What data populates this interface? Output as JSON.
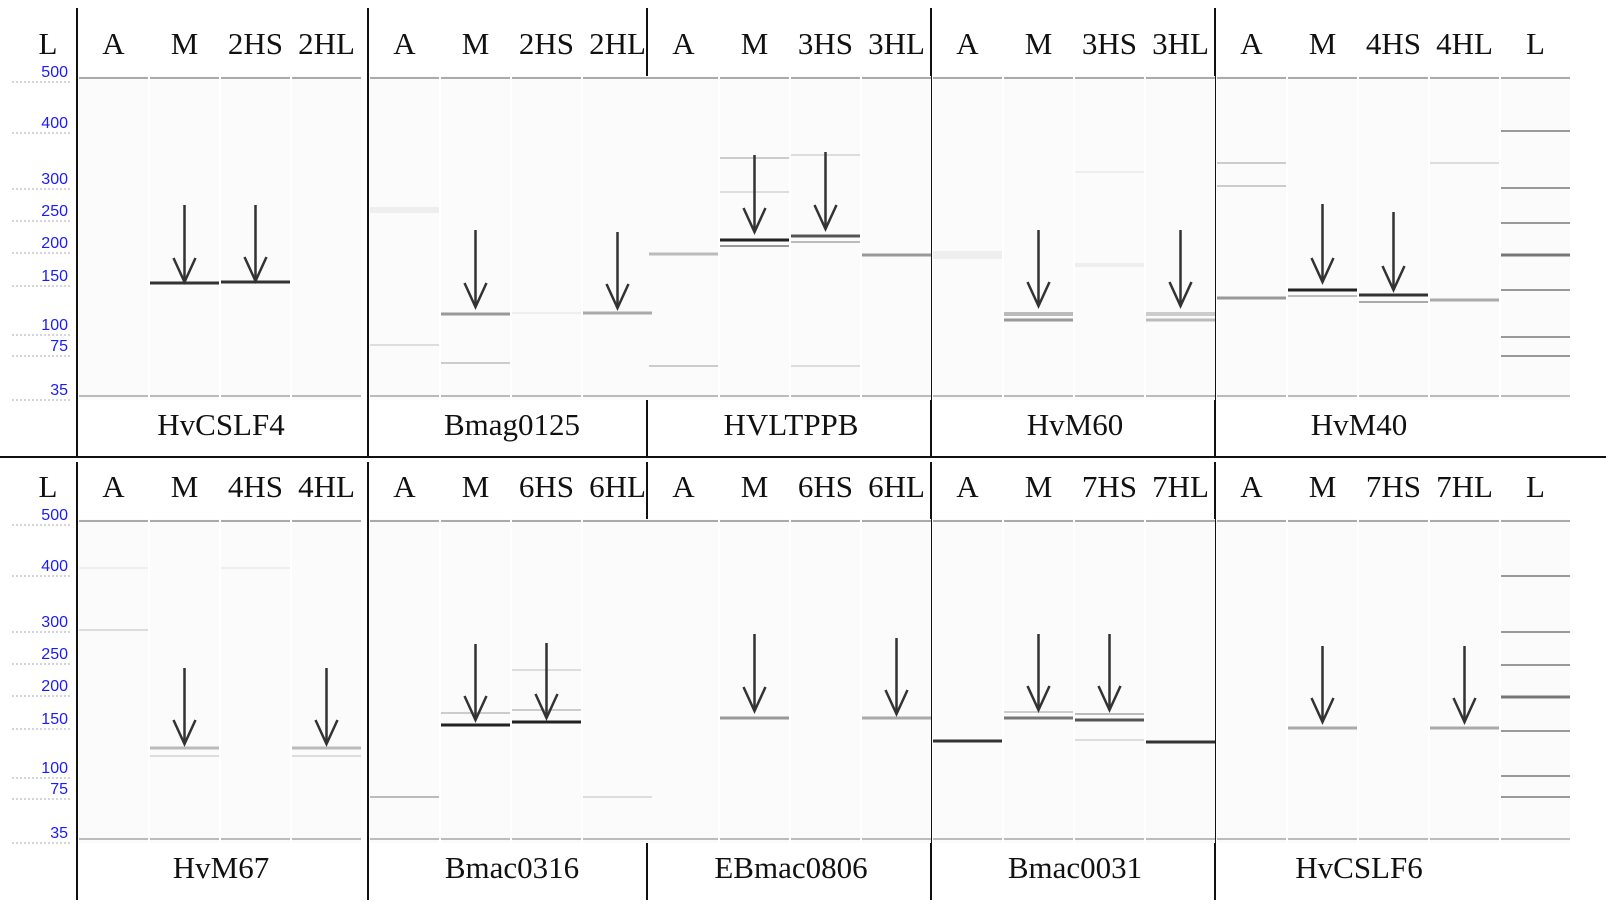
{
  "rows": [
    {
      "ladder": {
        "label": "L",
        "sizes": [
          500,
          400,
          300,
          250,
          200,
          150,
          100,
          75,
          35
        ]
      },
      "panels": [
        {
          "lanes": [
            "A",
            "M",
            "2HS",
            "2HL"
          ],
          "name": "HvCSLF4"
        },
        {
          "lanes": [
            "A",
            "M",
            "2HS",
            "2HL"
          ],
          "name": "Bmag0125"
        },
        {
          "lanes": [
            "A",
            "M",
            "3HS",
            "3HL"
          ],
          "name": "HVLTPPB"
        },
        {
          "lanes": [
            "A",
            "M",
            "3HS",
            "3HL"
          ],
          "name": "HvM60"
        },
        {
          "lanes": [
            "A",
            "M",
            "4HS",
            "4HL",
            "L"
          ],
          "name": "HvM40"
        }
      ]
    },
    {
      "ladder": {
        "label": "L",
        "sizes": [
          500,
          400,
          300,
          250,
          200,
          150,
          100,
          75,
          35
        ]
      },
      "panels": [
        {
          "lanes": [
            "A",
            "M",
            "4HS",
            "4HL"
          ],
          "name": "HvM67"
        },
        {
          "lanes": [
            "A",
            "M",
            "6HS",
            "6HL"
          ],
          "name": "Bmac0316"
        },
        {
          "lanes": [
            "A",
            "M",
            "6HS",
            "6HL"
          ],
          "name": "EBmac0806"
        },
        {
          "lanes": [
            "A",
            "M",
            "7HS",
            "7HL"
          ],
          "name": "Bmac0031"
        },
        {
          "lanes": [
            "A",
            "M",
            "7HS",
            "7HL",
            "L"
          ],
          "name": "HvCSLF6"
        }
      ]
    }
  ]
}
